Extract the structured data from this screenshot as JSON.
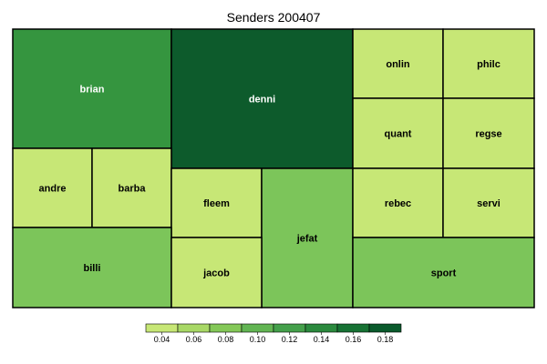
{
  "chart_data": {
    "type": "treemap",
    "title": "Senders 200407",
    "colormap": {
      "stops": [
        {
          "value": 0.04,
          "color": "#c7e776"
        },
        {
          "value": 0.06,
          "color": "#a8d866"
        },
        {
          "value": 0.08,
          "color": "#84c858"
        },
        {
          "value": 0.1,
          "color": "#62b553"
        },
        {
          "value": 0.12,
          "color": "#44a04b"
        },
        {
          "value": 0.14,
          "color": "#2b8a3e"
        },
        {
          "value": 0.16,
          "color": "#177234"
        },
        {
          "value": 0.18,
          "color": "#0a5a2c"
        }
      ]
    },
    "legend": {
      "position": "bottom",
      "ticks": [
        "0.04",
        "0.06",
        "0.08",
        "0.10",
        "0.12",
        "0.14",
        "0.16",
        "0.18"
      ]
    },
    "cells": [
      {
        "label": "brian",
        "value": 0.14,
        "color": "#35953f"
      },
      {
        "label": "denni",
        "value": 0.18,
        "color": "#0d5b2c"
      },
      {
        "label": "onlin",
        "value": 0.04,
        "color": "#c7e776"
      },
      {
        "label": "philc",
        "value": 0.04,
        "color": "#c7e776"
      },
      {
        "label": "quant",
        "value": 0.04,
        "color": "#c7e776"
      },
      {
        "label": "regse",
        "value": 0.04,
        "color": "#c7e776"
      },
      {
        "label": "andre",
        "value": 0.04,
        "color": "#c7e776"
      },
      {
        "label": "barba",
        "value": 0.04,
        "color": "#c7e776"
      },
      {
        "label": "fleem",
        "value": 0.04,
        "color": "#c7e776"
      },
      {
        "label": "jefat",
        "value": 0.08,
        "color": "#7cc55a"
      },
      {
        "label": "rebec",
        "value": 0.04,
        "color": "#c7e776"
      },
      {
        "label": "servi",
        "value": 0.04,
        "color": "#c7e776"
      },
      {
        "label": "billi",
        "value": 0.08,
        "color": "#7cc55a"
      },
      {
        "label": "jacob",
        "value": 0.04,
        "color": "#c7e776"
      },
      {
        "label": "sport",
        "value": 0.08,
        "color": "#7cc55a"
      }
    ]
  }
}
